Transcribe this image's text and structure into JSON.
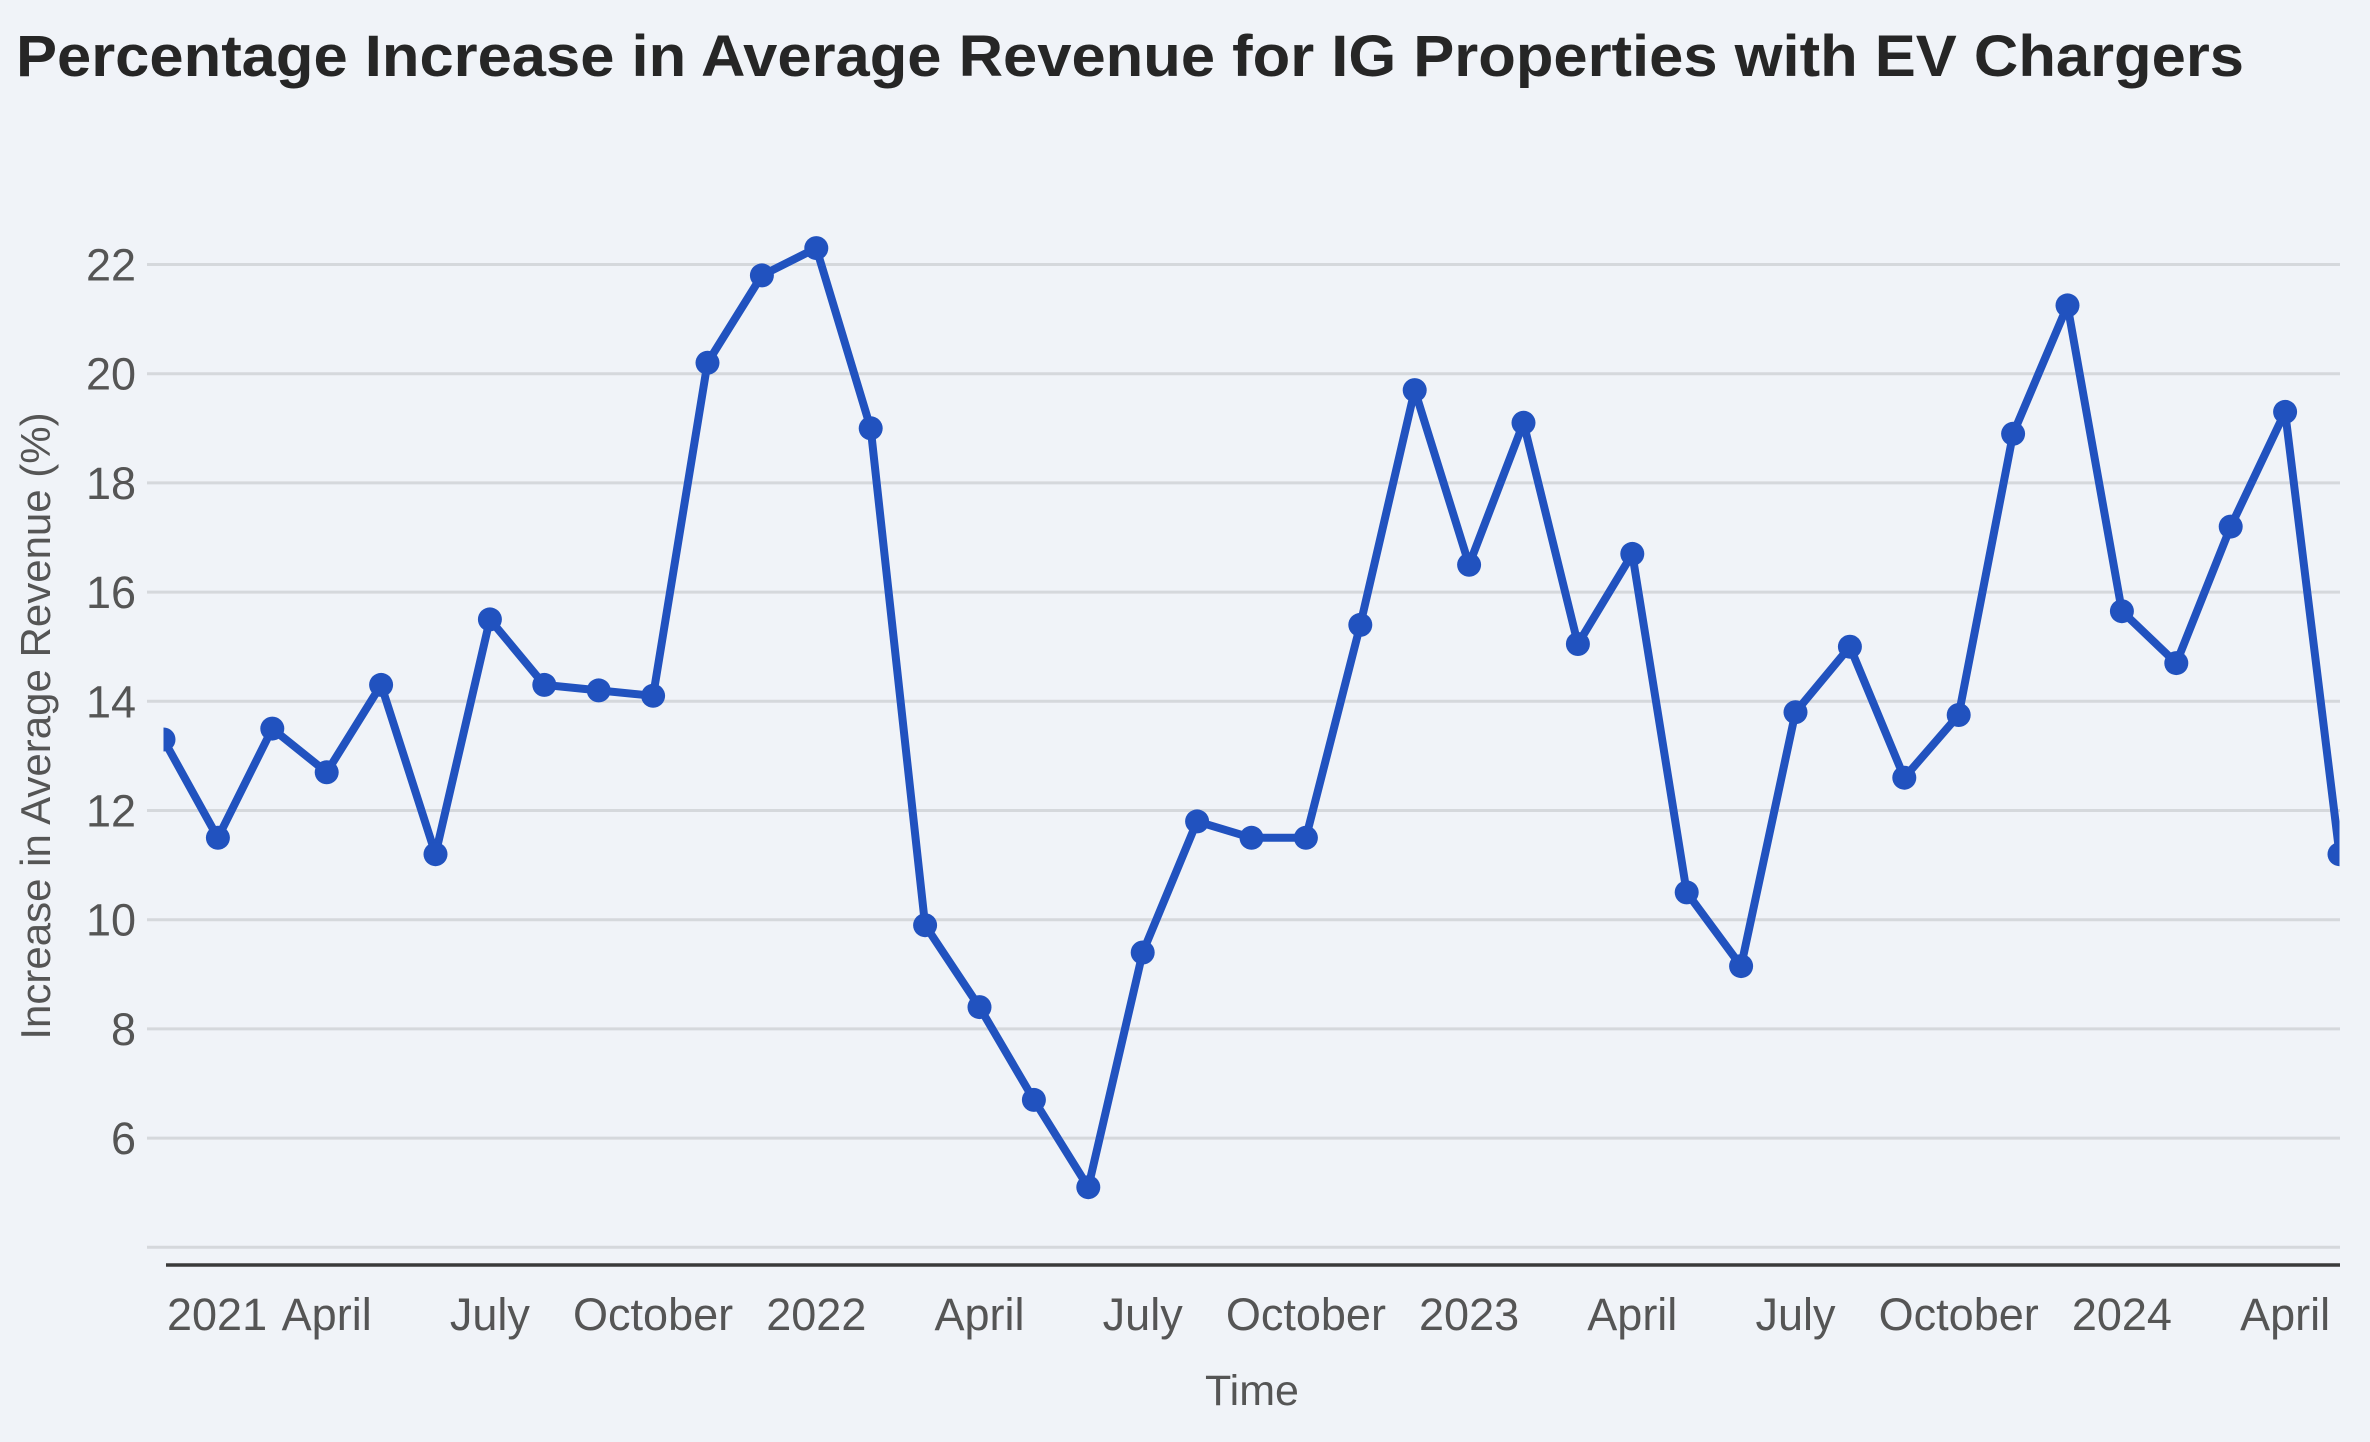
{
  "chart_data": {
    "type": "line",
    "title": "Percentage Increase in Average Revenue for IG Properties with EV Chargers",
    "xlabel": "Time",
    "ylabel": "Increase in Average Revenue (%)",
    "ylim": [
      4,
      22
    ],
    "yticks": [
      22,
      20,
      18,
      16,
      14,
      12,
      10,
      8,
      6
    ],
    "grid": true,
    "x_tick_labels": [
      {
        "label": "2021",
        "month_index": 0
      },
      {
        "label": "April",
        "month_index": 3
      },
      {
        "label": "July",
        "month_index": 6
      },
      {
        "label": "October",
        "month_index": 9
      },
      {
        "label": "2022",
        "month_index": 12
      },
      {
        "label": "April",
        "month_index": 15
      },
      {
        "label": "July",
        "month_index": 18
      },
      {
        "label": "October",
        "month_index": 21
      },
      {
        "label": "2023",
        "month_index": 24
      },
      {
        "label": "April",
        "month_index": 27
      },
      {
        "label": "July",
        "month_index": 30
      },
      {
        "label": "October",
        "month_index": 33
      },
      {
        "label": "2024",
        "month_index": 36
      },
      {
        "label": "April",
        "month_index": 39
      }
    ],
    "x": [
      "2021-01",
      "2021-02",
      "2021-03",
      "2021-04",
      "2021-05",
      "2021-06",
      "2021-07",
      "2021-08",
      "2021-09",
      "2021-10",
      "2021-11",
      "2021-12",
      "2022-01",
      "2022-02",
      "2022-03",
      "2022-04",
      "2022-05",
      "2022-06",
      "2022-07",
      "2022-08",
      "2022-09",
      "2022-10",
      "2022-11",
      "2022-12",
      "2023-01",
      "2023-02",
      "2023-03",
      "2023-04",
      "2023-05",
      "2023-06",
      "2023-07",
      "2023-08",
      "2023-09",
      "2023-10",
      "2023-11",
      "2023-12",
      "2024-01",
      "2024-02",
      "2024-03",
      "2024-04",
      "2024-05"
    ],
    "series": [
      {
        "name": "Increase in Average Revenue (%)",
        "color": "#2152BF",
        "values": [
          13.3,
          11.5,
          13.5,
          12.7,
          14.3,
          11.2,
          15.5,
          14.3,
          14.2,
          14.1,
          20.2,
          21.8,
          22.3,
          19.0,
          9.9,
          8.4,
          6.7,
          5.1,
          9.4,
          11.8,
          11.5,
          11.5,
          15.4,
          19.7,
          16.5,
          19.1,
          15.05,
          16.7,
          10.5,
          9.15,
          13.8,
          15.0,
          12.6,
          13.75,
          18.9,
          21.25,
          15.65,
          14.7,
          17.2,
          19.3,
          11.2
        ]
      }
    ]
  }
}
